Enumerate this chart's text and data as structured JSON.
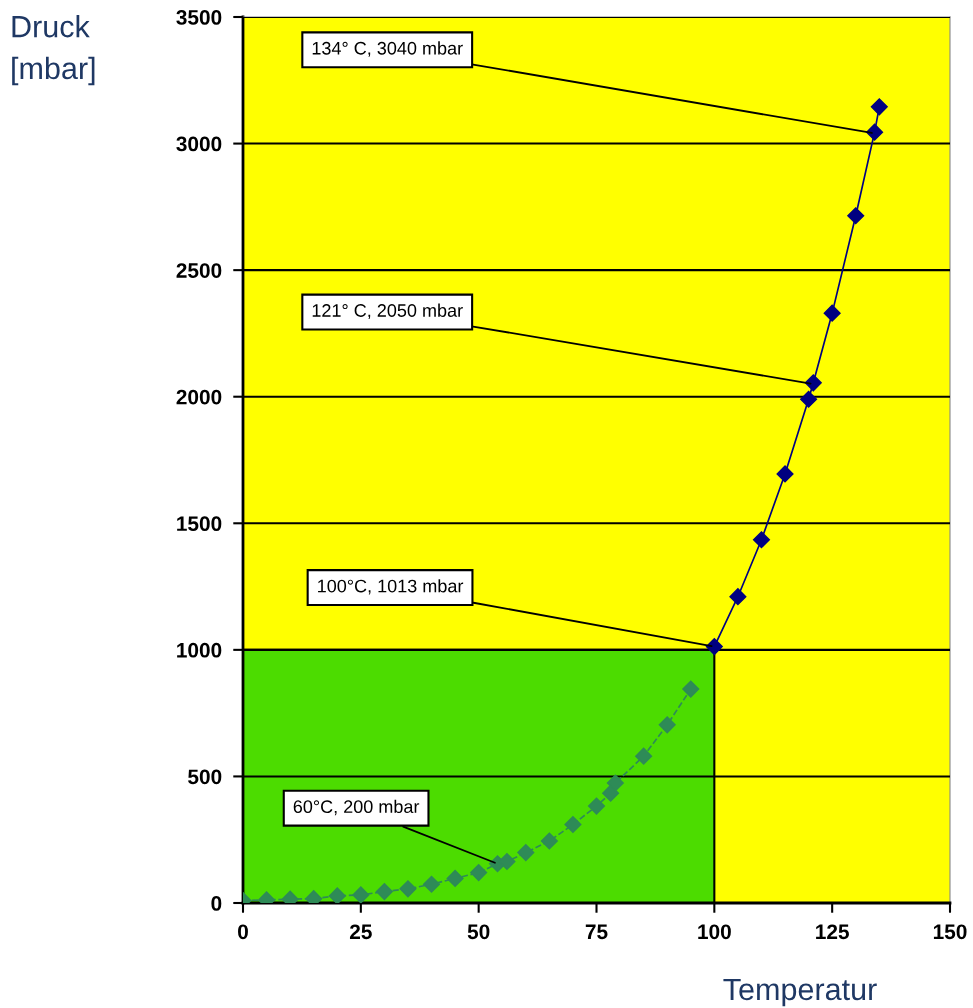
{
  "chart_data": {
    "type": "line",
    "ylabel": "Druck\n[mbar]",
    "xlabel": "Temperatur",
    "xlim": [
      0,
      150
    ],
    "xticks": [
      0,
      25,
      50,
      75,
      100,
      125,
      150
    ],
    "ylim": [
      0,
      3500
    ],
    "yticks": [
      0,
      500,
      1000,
      1500,
      2000,
      2500,
      3000,
      3500
    ],
    "grid": "y",
    "series": [
      {
        "type": "area",
        "color": "#4cdc00",
        "x": [
          0,
          100
        ],
        "values": [
          1000,
          1000
        ]
      },
      {
        "color": "#2e8b57",
        "marker": "diamond",
        "line_style": "dashed",
        "x": [
          0,
          5,
          10,
          15,
          20,
          25,
          30,
          35,
          40,
          45,
          50,
          54,
          56,
          60,
          65,
          70,
          75,
          78,
          79,
          85,
          90,
          95
        ],
        "values": [
          10,
          12,
          15,
          17,
          28,
          32,
          45,
          56,
          74,
          97,
          120,
          155,
          164,
          199,
          245,
          310,
          383,
          434,
          474,
          580,
          704,
          845
        ]
      },
      {
        "color": "#000080",
        "marker": "diamond",
        "line_style": "solid",
        "x": [
          100,
          105,
          110,
          115,
          120,
          121,
          125,
          130,
          134,
          135
        ],
        "values": [
          1013,
          1210,
          1435,
          1695,
          1990,
          2055,
          2330,
          2715,
          3045,
          3145
        ]
      }
    ],
    "annotations": [
      {
        "text": "134° C, 3040 mbar",
        "x": 134,
        "y": 3040
      },
      {
        "text": "121° C, 2050 mbar",
        "x": 121,
        "y": 2050
      },
      {
        "text": "100°C, 1013 mbar",
        "x": 100,
        "y": 1013
      },
      {
        "text": "60°C, 200 mbar",
        "x": 54,
        "y": 155
      }
    ]
  }
}
